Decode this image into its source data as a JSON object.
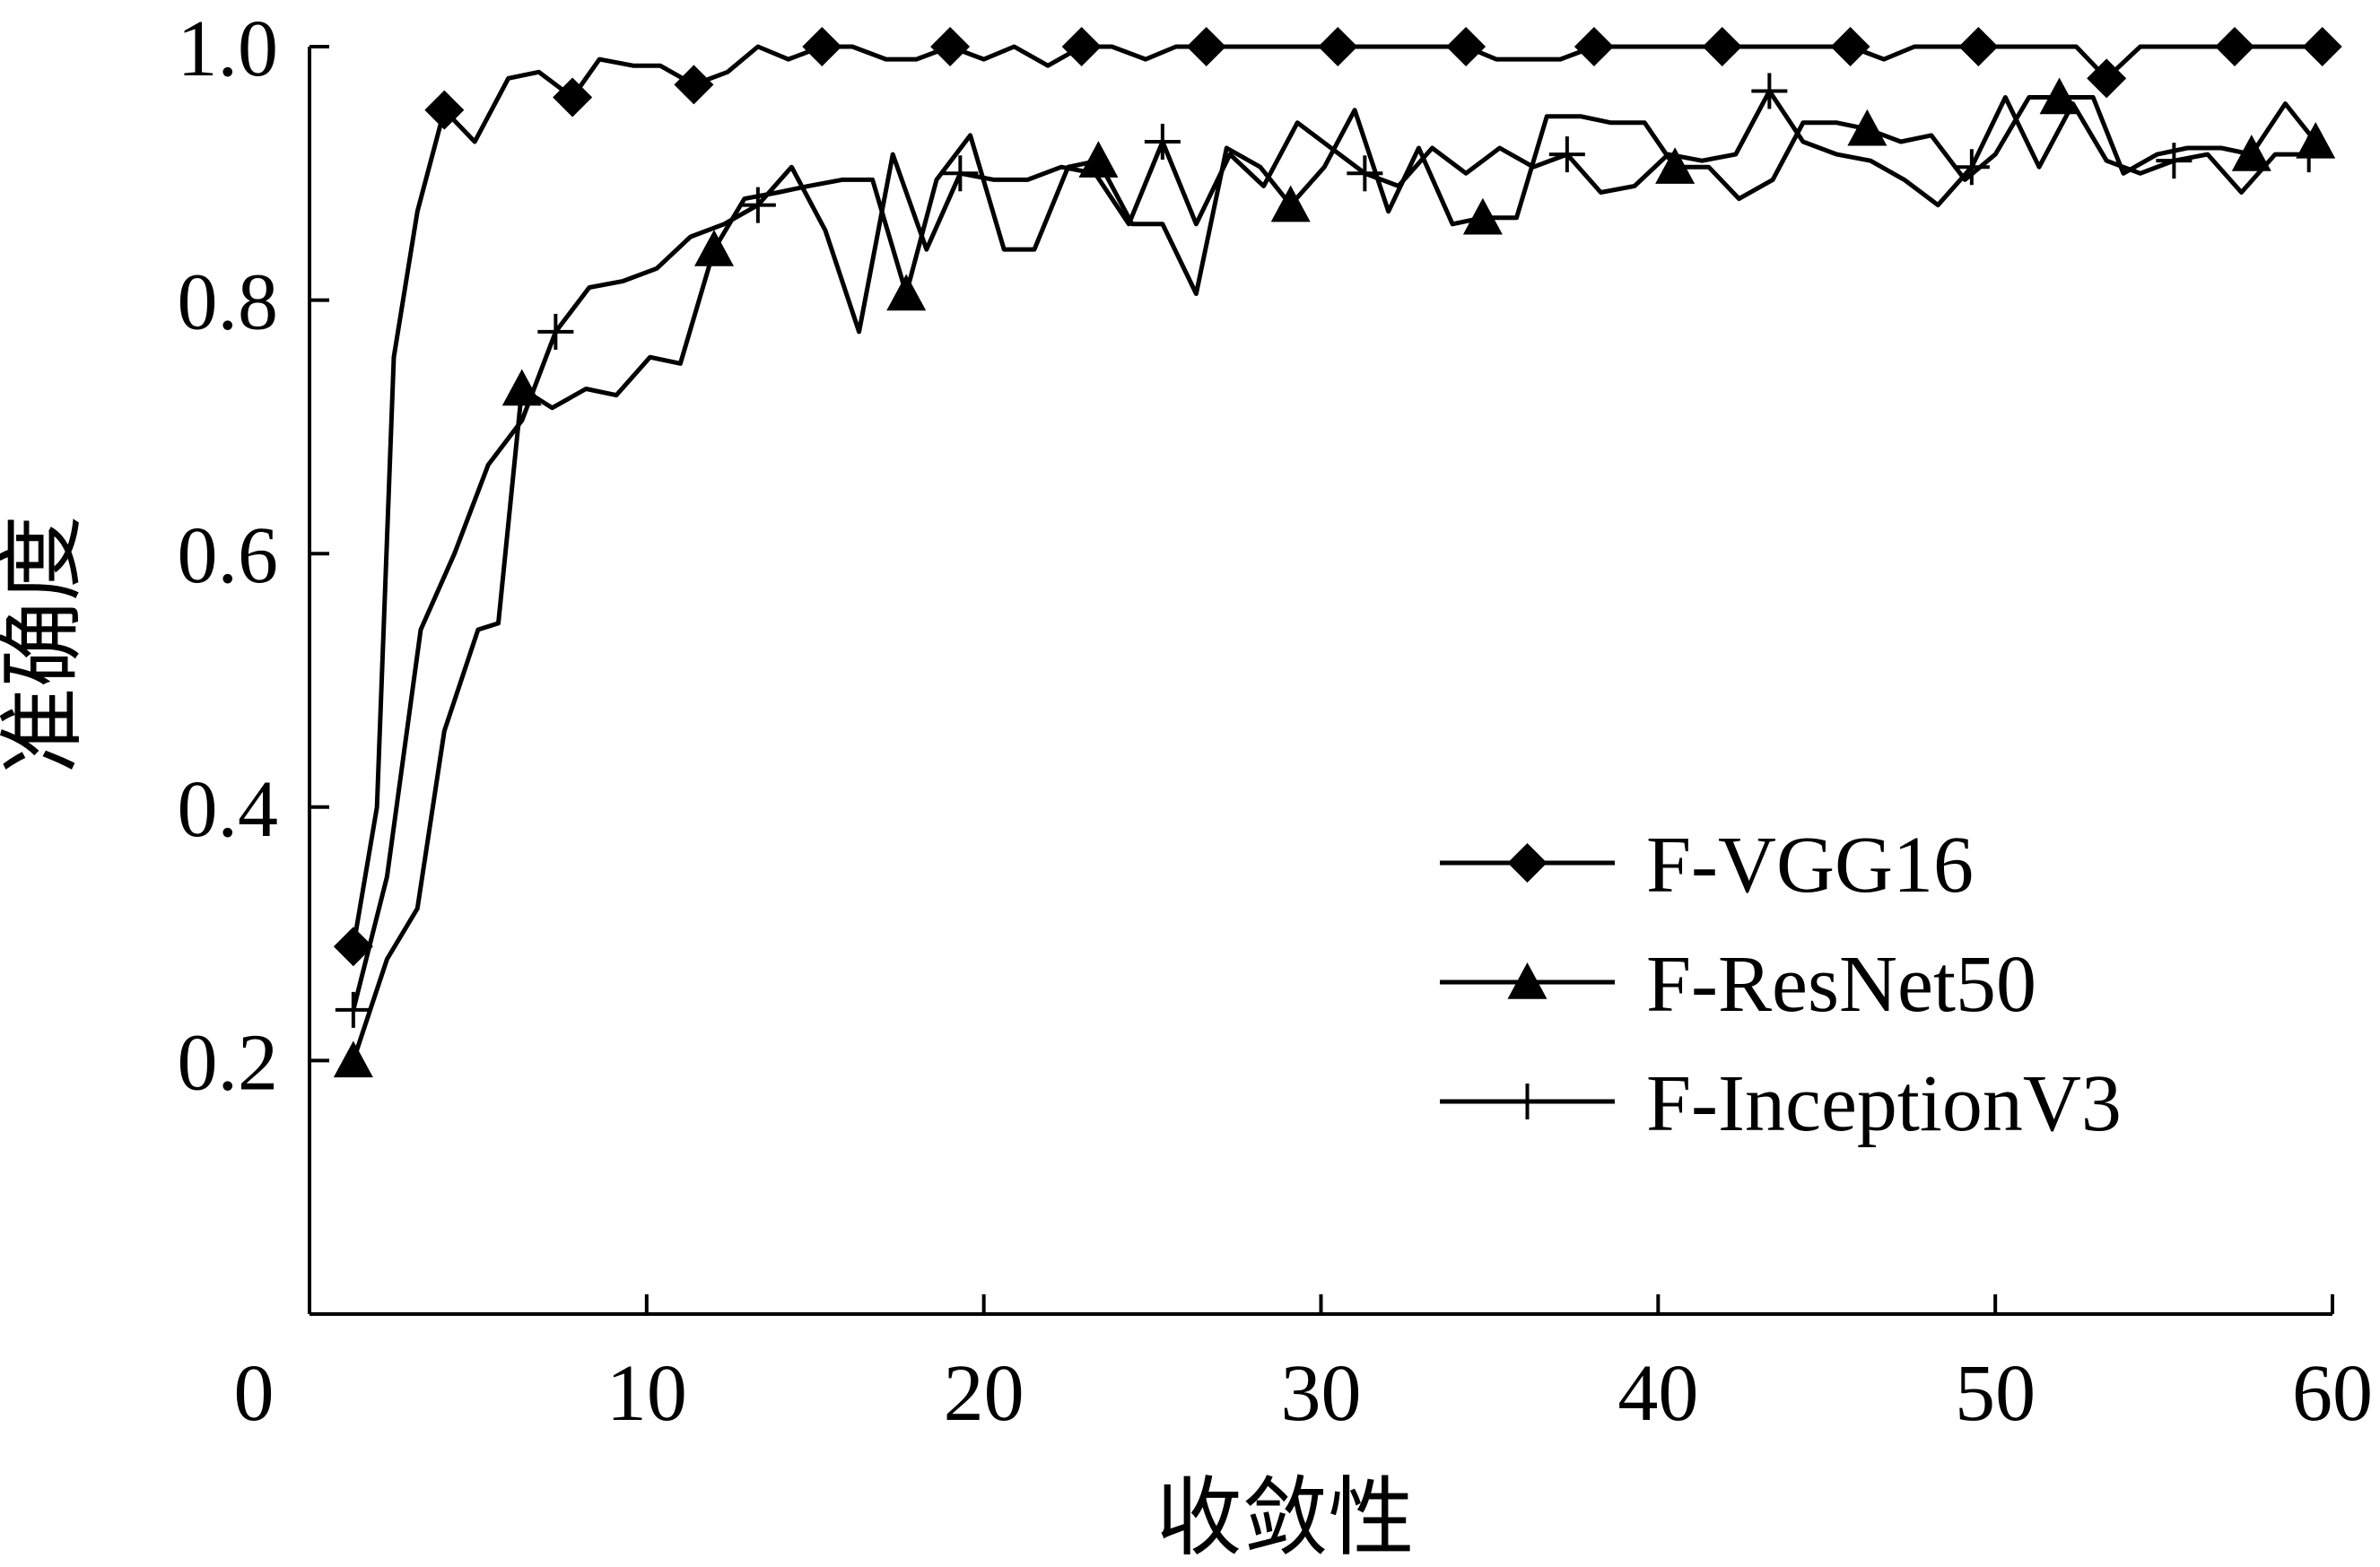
{
  "chart_data": {
    "type": "line",
    "title": "",
    "xlabel": "收敛性",
    "ylabel": "准确度",
    "xlim": [
      0,
      60
    ],
    "ylim": [
      0,
      1.0
    ],
    "xticks": [
      "0",
      "10",
      "20",
      "30",
      "40",
      "50",
      "60"
    ],
    "yticks": [
      "0.2",
      "0.4",
      "0.6",
      "0.8",
      "1.0"
    ],
    "grid": false,
    "legend_position": "bottom-right",
    "series": [
      {
        "name": "F-VGG16",
        "marker": "diamond",
        "x": [
          1.3,
          2,
          2.5,
          3.2,
          4.0,
          4.9,
          5.9,
          6.8,
          7.8,
          8.6,
          9.6,
          10.4,
          11.4,
          12.4,
          13.3,
          14.2,
          15.2,
          16.1,
          17.1,
          18,
          19,
          20,
          20.9,
          21.9,
          22.9,
          23.8,
          24.8,
          25.7,
          26.6,
          27.6,
          28.6,
          29.5,
          30.5,
          31.4,
          32.4,
          33.3,
          34.3,
          35.2,
          36.2,
          37.1,
          38.1,
          39.0,
          40.0,
          41.0,
          41.9,
          42.9,
          43.8,
          44.8,
          45.7,
          46.7,
          47.6,
          48.6,
          49.5,
          50.5,
          51.4,
          52.4,
          53.3,
          54.3,
          55.2,
          56.2,
          57.1,
          58.1,
          59.0,
          59.7
        ],
        "y": [
          0.29,
          0.4,
          0.755,
          0.87,
          0.95,
          0.925,
          0.975,
          0.98,
          0.96,
          0.99,
          0.985,
          0.985,
          0.97,
          0.98,
          1.0,
          0.99,
          1.0,
          1.0,
          0.99,
          0.99,
          1.0,
          0.99,
          1.0,
          0.985,
          1.0,
          1.0,
          0.99,
          1.0,
          1.0,
          1.0,
          1.0,
          1.0,
          1.0,
          1.0,
          1.0,
          1.0,
          1.0,
          0.99,
          0.99,
          0.99,
          1.0,
          1.0,
          1.0,
          1.0,
          1.0,
          1.0,
          1.0,
          1.0,
          1.0,
          0.99,
          1.0,
          1.0,
          1.0,
          1.0,
          1.0,
          1.0,
          0.975,
          1.0,
          1.0,
          1.0,
          1.0,
          1.0,
          1.0,
          1.0
        ]
      },
      {
        "name": "F-ResNet50",
        "marker": "triangle",
        "x": [
          1.3,
          2.3,
          3.2,
          4.0,
          5.0,
          5.6,
          6.3,
          7.2,
          8.2,
          9.1,
          10.1,
          11.0,
          12.0,
          12.9,
          13.9,
          14.8,
          15.8,
          16.7,
          17.7,
          18.6,
          19.6,
          20.6,
          21.5,
          22.5,
          23.4,
          24.4,
          25.3,
          26.3,
          27.2,
          28.2,
          29.1,
          30.1,
          31.0,
          32.0,
          32.9,
          33.9,
          34.8,
          35.8,
          36.7,
          37.7,
          38.6,
          39.6,
          40.5,
          41.5,
          42.4,
          43.4,
          44.3,
          45.3,
          46.2,
          47.2,
          48.1,
          49.1,
          50.0,
          51.0,
          51.9,
          52.9,
          53.8,
          54.8,
          55.7,
          56.7,
          57.6,
          58.6,
          59.5
        ],
        "y": [
          0.2,
          0.28,
          0.32,
          0.46,
          0.54,
          0.545,
          0.73,
          0.715,
          0.73,
          0.725,
          0.755,
          0.75,
          0.84,
          0.88,
          0.885,
          0.89,
          0.895,
          0.895,
          0.805,
          0.895,
          0.93,
          0.84,
          0.84,
          0.905,
          0.91,
          0.86,
          0.86,
          0.805,
          0.92,
          0.905,
          0.875,
          0.905,
          0.95,
          0.87,
          0.92,
          0.86,
          0.865,
          0.865,
          0.945,
          0.945,
          0.94,
          0.94,
          0.905,
          0.905,
          0.88,
          0.895,
          0.94,
          0.94,
          0.935,
          0.925,
          0.93,
          0.895,
          0.915,
          0.96,
          0.96,
          0.96,
          0.9,
          0.915,
          0.92,
          0.92,
          0.915,
          0.955,
          0.925
        ]
      },
      {
        "name": "F-InceptionV3",
        "marker": "plus",
        "x": [
          1.3,
          2.3,
          3.3,
          4.3,
          5.3,
          6.3,
          7.3,
          8.3,
          9.3,
          10.3,
          11.3,
          12.3,
          13.3,
          14.3,
          15.3,
          16.3,
          17.3,
          18.3,
          19.3,
          20.3,
          21.3,
          22.3,
          23.3,
          24.3,
          25.3,
          26.3,
          27.3,
          28.3,
          29.3,
          30.3,
          31.3,
          32.3,
          33.3,
          34.3,
          35.3,
          36.3,
          37.3,
          38.3,
          39.3,
          40.3,
          41.3,
          42.3,
          43.3,
          44.3,
          45.3,
          46.3,
          47.3,
          48.3,
          49.3,
          50.3,
          51.3,
          52.3,
          53.3,
          54.3,
          55.3,
          56.3,
          57.3,
          58.3,
          59.3
        ],
        "y": [
          0.24,
          0.345,
          0.54,
          0.6,
          0.67,
          0.705,
          0.775,
          0.81,
          0.815,
          0.825,
          0.85,
          0.86,
          0.875,
          0.905,
          0.855,
          0.775,
          0.915,
          0.84,
          0.9,
          0.895,
          0.895,
          0.905,
          0.9,
          0.86,
          0.925,
          0.86,
          0.915,
          0.89,
          0.94,
          0.92,
          0.9,
          0.89,
          0.92,
          0.9,
          0.92,
          0.905,
          0.915,
          0.885,
          0.89,
          0.915,
          0.91,
          0.915,
          0.965,
          0.925,
          0.915,
          0.91,
          0.895,
          0.875,
          0.905,
          0.96,
          0.905,
          0.955,
          0.91,
          0.9,
          0.91,
          0.915,
          0.885,
          0.915,
          0.915
        ]
      }
    ]
  }
}
